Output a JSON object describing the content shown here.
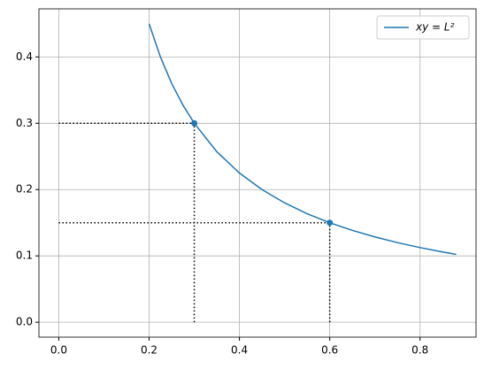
{
  "chart_data": {
    "type": "line",
    "series": [
      {
        "name": "xy = L²",
        "color": "#1f77b4",
        "x": [
          0.2,
          0.225,
          0.25,
          0.275,
          0.3,
          0.35,
          0.4,
          0.45,
          0.5,
          0.55,
          0.6,
          0.65,
          0.7,
          0.75,
          0.8,
          0.85,
          0.88
        ],
        "values": [
          0.45,
          0.4,
          0.36,
          0.3273,
          0.3,
          0.2571,
          0.225,
          0.2,
          0.18,
          0.1636,
          0.15,
          0.1385,
          0.1286,
          0.12,
          0.1125,
          0.1059,
          0.1023
        ]
      }
    ],
    "points": {
      "color": "#1f77b4",
      "x": [
        0.3,
        0.6
      ],
      "values": [
        0.3,
        0.15
      ]
    },
    "guide_color": "#000000",
    "xlim": [
      -0.044,
      0.924
    ],
    "ylim": [
      -0.0225,
      0.4725
    ],
    "xticks": [
      {
        "value": 0,
        "label": "0.0"
      },
      {
        "value": 0.2,
        "label": "0.2"
      },
      {
        "value": 0.4,
        "label": "0.4"
      },
      {
        "value": 0.6,
        "label": "0.6"
      },
      {
        "value": 0.8,
        "label": "0.8"
      }
    ],
    "yticks": [
      {
        "value": 0,
        "label": "0.0"
      },
      {
        "value": 0.1,
        "label": "0.1"
      },
      {
        "value": 0.2,
        "label": "0.2"
      },
      {
        "value": 0.3,
        "label": "0.3"
      },
      {
        "value": 0.4,
        "label": "0.4"
      }
    ],
    "grid": true,
    "legend": "upper right"
  }
}
